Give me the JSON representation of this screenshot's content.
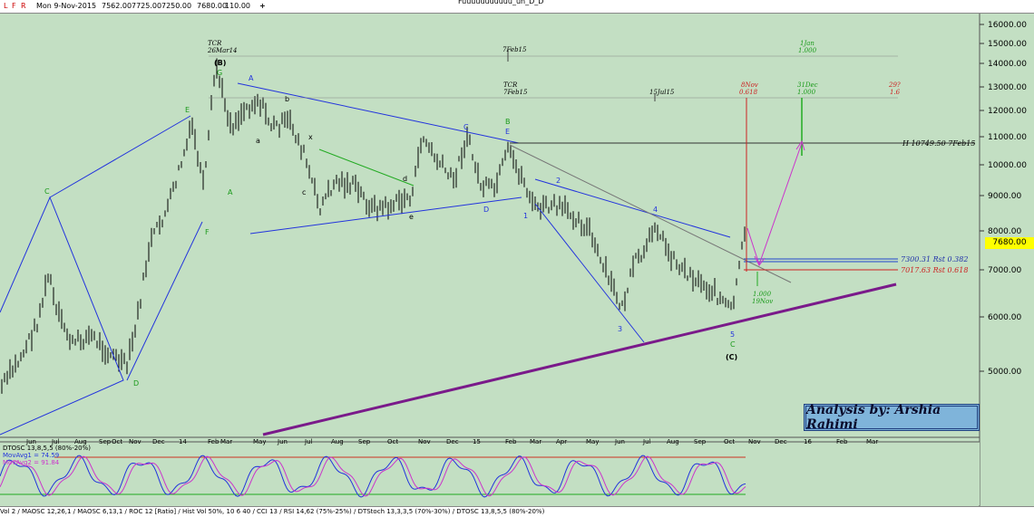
{
  "toolbar": {
    "icons": [
      "L",
      "F",
      "R"
    ],
    "date": "Mon 9-Nov-2015",
    "open": "7562.00",
    "high": "7725.00",
    "low": "7250.00",
    "close": "7680.00",
    "change": "110.00",
    "plus_icon": "+",
    "title": "Fuuuuuuuuuuu_un_D_D"
  },
  "price_tag": "7680.00",
  "analysis_label": "Analysis by: Arshia Rahimi",
  "oscillator_info": {
    "line1": "DTOSC 13,8,5,5 (80%-20%)",
    "line2": "MovAvg1 = 74.59",
    "line3": "MovAvg2 = 91.84"
  },
  "bottom_tabs": "Vol 2 / MAOSC 12,26,1 / MAOSC 6,13,1 / ROC 12 [Ratio] / Hist Vol 50%, 10 6 40 / CCI 13 / RSI 14,62 (75%-25%) / DTStoch 13,3,3,5 (70%-30%) / DTOSC 13,8,5,5 (80%-20%)",
  "chart_data": {
    "type": "bar",
    "yaxis": {
      "ticks": [
        "16000.00",
        "15000.00",
        "14000.00",
        "13000.00",
        "12000.00",
        "11000.00",
        "10000.00",
        "9000.00",
        "8000.00",
        "7000.00",
        "6000.00",
        "5000.00"
      ],
      "scale": "log"
    },
    "xaxis": {
      "ticks": [
        "Jun",
        "Jul",
        "Aug",
        "Sep",
        "Oct",
        "Nov",
        "Dec",
        "14",
        "Feb",
        "Mar",
        "May",
        "Jun",
        "Jul",
        "Aug",
        "Sep",
        "Oct",
        "Nov",
        "Dec",
        "15",
        "Feb",
        "Mar",
        "Apr",
        "May",
        "Jun",
        "Jul",
        "Aug",
        "Sep",
        "Oct",
        "Nov",
        "Dec",
        "16",
        "Feb",
        "Mar"
      ]
    },
    "levels": [
      {
        "label": "H 10749.50 7Feb15",
        "value": 10749.5
      },
      {
        "label": "7300.31 Rst 0.382",
        "value": 7300.31
      },
      {
        "label": "7017.63 Rst 0.618",
        "value": 7017.63
      }
    ],
    "time_markers": [
      {
        "top": "TCR",
        "bottom": "26Mar14"
      },
      {
        "top": "",
        "bottom": "7Feb15"
      },
      {
        "top": "TCR",
        "bottom": "7Feb15"
      },
      {
        "top": "",
        "bottom": "15Jul15"
      },
      {
        "top": "1Jan",
        "bottom": "1.000"
      },
      {
        "top": "8Nov",
        "bottom": "0.618"
      },
      {
        "top": "31Dec",
        "bottom": "1.000"
      },
      {
        "top": "29?",
        "bottom": "1.6"
      },
      {
        "top": "1.000",
        "bottom": "19Nov"
      }
    ],
    "wave_labels": [
      "(B)",
      "G",
      "F",
      "E",
      "C",
      "D",
      "A",
      "A",
      "B",
      "C",
      "D",
      "E",
      "a",
      "b",
      "c",
      "d",
      "e",
      "x",
      "1",
      "2",
      "3",
      "4",
      "5",
      "C",
      "(C)"
    ],
    "oscillator": {
      "name": "DTOSC 13,8,5,5",
      "levels": [
        80,
        20
      ]
    }
  }
}
